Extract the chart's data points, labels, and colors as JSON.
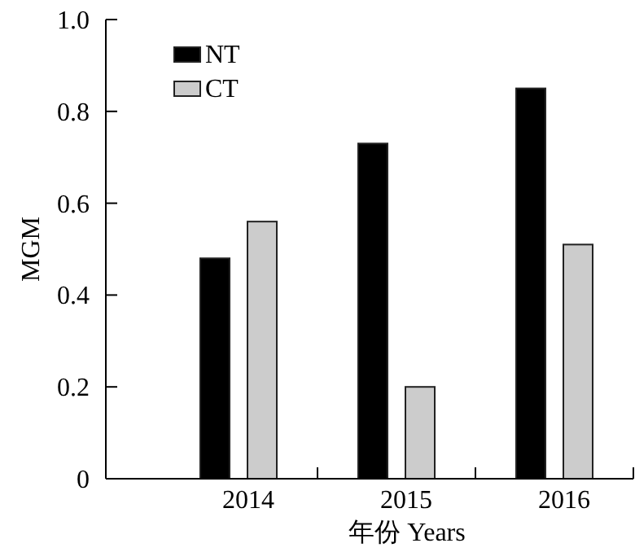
{
  "chart_data": {
    "type": "bar",
    "categories": [
      "2014",
      "2015",
      "2016"
    ],
    "series": [
      {
        "name": "NT",
        "color": "#000000",
        "values": [
          0.48,
          0.73,
          0.85
        ]
      },
      {
        "name": "CT",
        "color": "#cccccc",
        "values": [
          0.56,
          0.2,
          0.51
        ]
      }
    ],
    "ylim": [
      0,
      1
    ],
    "yticks": [
      0,
      0.2,
      0.4,
      0.6,
      0.8,
      {
        "value": 1,
        "label": "1.0"
      }
    ],
    "xlabel": "年份 Years",
    "ylabel": "MGM",
    "legend": "top left"
  }
}
